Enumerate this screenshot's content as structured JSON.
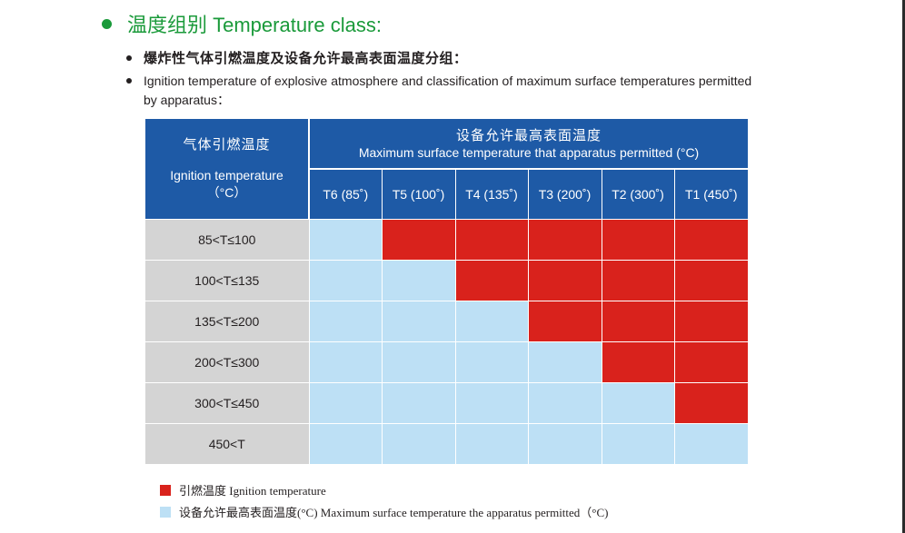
{
  "heading": "温度组别 Temperature class:",
  "bullets": [
    "爆炸性气体引燃温度及设备允许最高表面温度分组：",
    "Ignition temperature of explosive atmosphere and classification of maximum surface temperatures permitted by apparatus："
  ],
  "table": {
    "left_header": [
      "气体引燃温度",
      "Ignition temperature",
      "（°C）"
    ],
    "top_header": [
      "设备允许最高表面温度",
      "Maximum surface temperature that apparatus permitted (°C)"
    ],
    "columns": [
      "T6 (85˚)",
      "T5 (100˚)",
      "T4 (135˚)",
      "T3 (200˚)",
      "T2 (300˚)",
      "T1 (450˚)"
    ],
    "rows": [
      {
        "label": "85<T≤100",
        "cells": [
          "blue",
          "red",
          "red",
          "red",
          "red",
          "red"
        ]
      },
      {
        "label": "100<T≤135",
        "cells": [
          "blue",
          "blue",
          "red",
          "red",
          "red",
          "red"
        ]
      },
      {
        "label": "135<T≤200",
        "cells": [
          "blue",
          "blue",
          "blue",
          "red",
          "red",
          "red"
        ]
      },
      {
        "label": "200<T≤300",
        "cells": [
          "blue",
          "blue",
          "blue",
          "blue",
          "red",
          "red"
        ]
      },
      {
        "label": "300<T≤450",
        "cells": [
          "blue",
          "blue",
          "blue",
          "blue",
          "blue",
          "red"
        ]
      },
      {
        "label": "450<T",
        "cells": [
          "blue",
          "blue",
          "blue",
          "blue",
          "blue",
          "blue"
        ]
      }
    ]
  },
  "legend": [
    {
      "color": "#d9221c",
      "label": "引燃温度  Ignition temperature"
    },
    {
      "color": "#bde0f5",
      "label": "设备允许最高表面温度(°C)  Maximum surface temperature the apparatus permitted（°C)"
    }
  ],
  "colors": {
    "red": "#d9221c",
    "blue": "#bde0f5",
    "header": "#1e5aa6",
    "label_bg": "#d4d4d4",
    "heading": "#1a9a3a"
  }
}
